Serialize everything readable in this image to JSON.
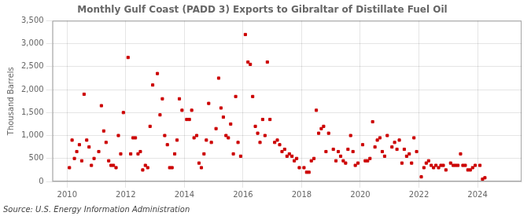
{
  "chart_data": {
    "type": "scatter",
    "title": "Monthly Gulf Coast (PADD 3) Exports to Gibraltar of Distillate Fuel Oil",
    "ylabel": "Thousand Barrels",
    "annotation": "Source: U.S. Energy Information Administration",
    "color": "#cc0000",
    "marker": "square",
    "grid": true,
    "xlim": [
      2009.5,
      2025.5
    ],
    "xticks": [
      2010,
      2012,
      2014,
      2016,
      2018,
      2020,
      2022,
      2024
    ],
    "ylim": [
      0,
      3500
    ],
    "yticks": [
      0,
      500,
      {
        "value": 1000,
        "label": "1,000"
      },
      {
        "value": 1500,
        "label": "1,500"
      },
      {
        "value": 2000,
        "label": "2,000"
      },
      {
        "value": 2500,
        "label": "2,500"
      },
      {
        "value": 3000,
        "label": "3,000"
      },
      {
        "value": 3500,
        "label": "3,500"
      }
    ],
    "x": [
      2010.08,
      2010.17,
      2010.25,
      2010.33,
      2010.42,
      2010.5,
      2010.58,
      2010.67,
      2010.75,
      2010.83,
      2010.92,
      2011.08,
      2011.17,
      2011.25,
      2011.33,
      2011.42,
      2011.5,
      2011.58,
      2011.67,
      2011.75,
      2011.83,
      2011.92,
      2012.08,
      2012.17,
      2012.25,
      2012.33,
      2012.42,
      2012.5,
      2012.58,
      2012.67,
      2012.75,
      2012.83,
      2012.92,
      2013.08,
      2013.17,
      2013.25,
      2013.33,
      2013.42,
      2013.5,
      2013.58,
      2013.67,
      2013.75,
      2013.83,
      2013.92,
      2014.08,
      2014.17,
      2014.25,
      2014.33,
      2014.42,
      2014.5,
      2014.58,
      2014.67,
      2014.75,
      2014.83,
      2014.92,
      2015.08,
      2015.17,
      2015.25,
      2015.33,
      2015.42,
      2015.5,
      2015.58,
      2015.67,
      2015.75,
      2015.83,
      2015.92,
      2016.08,
      2016.17,
      2016.25,
      2016.33,
      2016.42,
      2016.5,
      2016.58,
      2016.67,
      2016.75,
      2016.83,
      2016.92,
      2017.08,
      2017.17,
      2017.25,
      2017.33,
      2017.42,
      2017.5,
      2017.58,
      2017.67,
      2017.75,
      2017.83,
      2017.92,
      2018.08,
      2018.17,
      2018.25,
      2018.33,
      2018.42,
      2018.5,
      2018.58,
      2018.67,
      2018.75,
      2018.83,
      2018.92,
      2019.08,
      2019.17,
      2019.25,
      2019.33,
      2019.42,
      2019.5,
      2019.58,
      2019.67,
      2019.75,
      2019.83,
      2019.92,
      2020.08,
      2020.17,
      2020.25,
      2020.33,
      2020.42,
      2020.5,
      2020.58,
      2020.67,
      2020.75,
      2020.83,
      2020.92,
      2021.08,
      2021.17,
      2021.25,
      2021.33,
      2021.42,
      2021.5,
      2021.58,
      2021.67,
      2021.75,
      2021.83,
      2021.92,
      2022.08,
      2022.17,
      2022.25,
      2022.33,
      2022.42,
      2022.5,
      2022.58,
      2022.67,
      2022.75,
      2022.83,
      2022.92,
      2023.08,
      2023.17,
      2023.25,
      2023.33,
      2023.42,
      2023.5,
      2023.58,
      2023.67,
      2023.75,
      2023.83,
      2023.92,
      2024.08,
      2024.17,
      2024.25
    ],
    "values": [
      300,
      900,
      500,
      650,
      800,
      450,
      1900,
      900,
      750,
      350,
      500,
      650,
      1650,
      1100,
      850,
      450,
      350,
      350,
      300,
      1000,
      600,
      1500,
      2700,
      600,
      950,
      950,
      600,
      650,
      250,
      350,
      300,
      1200,
      2100,
      2350,
      1450,
      1800,
      1000,
      800,
      300,
      300,
      600,
      900,
      1800,
      1550,
      1350,
      1350,
      1550,
      950,
      1000,
      400,
      300,
      600,
      900,
      1700,
      850,
      1150,
      2250,
      1600,
      1400,
      1000,
      950,
      1250,
      600,
      1850,
      850,
      550,
      3200,
      2600,
      2550,
      1850,
      1200,
      1050,
      850,
      1350,
      1000,
      2600,
      1350,
      850,
      900,
      800,
      650,
      700,
      550,
      600,
      550,
      450,
      500,
      300,
      300,
      200,
      200,
      450,
      500,
      1550,
      1050,
      1150,
      1200,
      650,
      1050,
      700,
      450,
      650,
      550,
      450,
      400,
      700,
      1000,
      650,
      350,
      400,
      800,
      450,
      450,
      500,
      1300,
      750,
      900,
      950,
      650,
      550,
      1000,
      750,
      850,
      700,
      900,
      400,
      700,
      550,
      600,
      400,
      950,
      650,
      100,
      300,
      400,
      450,
      350,
      300,
      350,
      300,
      350,
      350,
      250,
      400,
      350,
      350,
      350,
      600,
      350,
      350,
      250,
      250,
      300,
      350,
      350,
      50,
      80
    ]
  }
}
